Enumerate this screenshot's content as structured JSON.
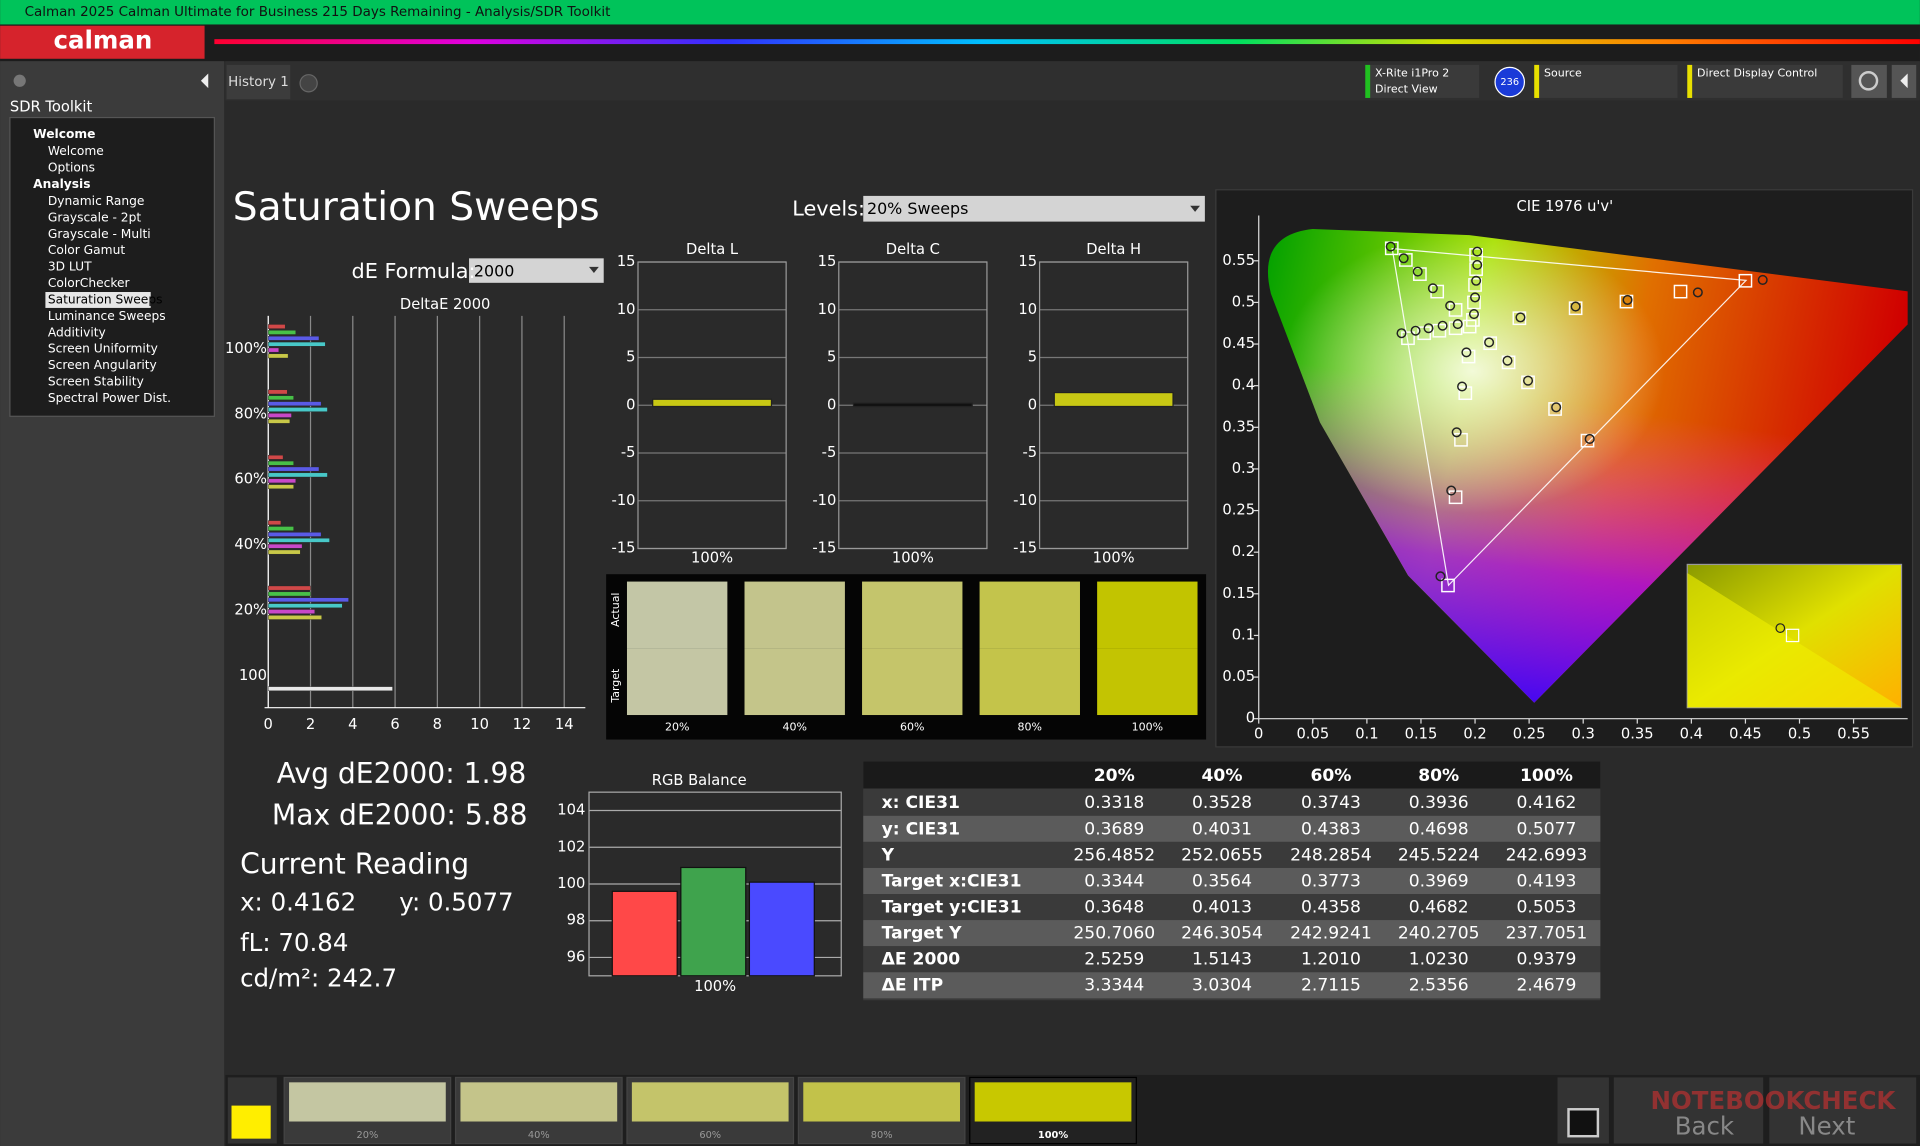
{
  "window": {
    "title": "Calman 2025 Calman Ultimate for Business 215 Days Remaining  - Analysis/SDR Toolkit"
  },
  "app": {
    "logo": "calman"
  },
  "tabs": {
    "items": [
      "History 1"
    ]
  },
  "toolbar": {
    "meter": "X-Rite i1Pro 2",
    "meter_mode": "Direct View",
    "badge": "236",
    "source": "Source",
    "display": "Direct Display Control"
  },
  "sidebar": {
    "title": "SDR Toolkit",
    "groups": [
      {
        "label": "Welcome",
        "items": [
          "Welcome",
          "Options"
        ]
      },
      {
        "label": "Analysis",
        "items": [
          "Dynamic Range",
          "Grayscale - 2pt",
          "Grayscale - Multi",
          "Color Gamut",
          "3D LUT",
          "ColorChecker",
          "Saturation Sweeps",
          "Luminance Sweeps",
          "Additivity",
          "Screen Uniformity",
          "Screen Angularity",
          "Screen Stability",
          "Spectral Power Dist."
        ]
      }
    ],
    "selected": {
      "group": 1,
      "item": 6
    }
  },
  "header": {
    "title": "Saturation Sweeps",
    "levels_label": "Levels:",
    "levels": "20% Sweeps",
    "formula_label": "dE Formula:",
    "formula": "2000"
  },
  "deltae_chart": {
    "type": "bar",
    "orientation": "horizontal",
    "title": "DeltaE 2000",
    "categories": [
      "100%",
      "80%",
      "60%",
      "40%",
      "20%",
      "100"
    ],
    "series": [
      {
        "color": "#d04848",
        "values": [
          0.8,
          0.9,
          0.7,
          0.6,
          2.0,
          null
        ]
      },
      {
        "color": "#48c048",
        "values": [
          1.3,
          1.2,
          1.2,
          1.2,
          2.0,
          null
        ]
      },
      {
        "color": "#5a5ae6",
        "values": [
          2.4,
          2.5,
          2.4,
          2.5,
          3.8,
          null
        ]
      },
      {
        "color": "#48c8c8",
        "values": [
          2.7,
          2.8,
          2.8,
          2.9,
          3.5,
          null
        ]
      },
      {
        "color": "#c848c8",
        "values": [
          0.5,
          1.1,
          1.3,
          1.6,
          2.2,
          null
        ]
      },
      {
        "color": "#c8c848",
        "values": [
          0.9379,
          1.023,
          1.201,
          1.5143,
          2.5259,
          null
        ]
      },
      {
        "color": "#e8e8e8",
        "values": [
          null,
          null,
          null,
          null,
          null,
          5.88
        ]
      }
    ],
    "xlim": [
      0,
      15
    ],
    "xticks": [
      0,
      2,
      4,
      6,
      8,
      10,
      12,
      14
    ]
  },
  "delta_charts": [
    {
      "type": "bar",
      "title": "Delta L",
      "categories": [
        "100%"
      ],
      "values": [
        0.5
      ],
      "color": "#c8c814",
      "ylim": [
        -15,
        15
      ],
      "yticks": [
        15,
        10,
        5,
        0,
        -5,
        -10,
        -15
      ]
    },
    {
      "type": "bar",
      "title": "Delta C",
      "categories": [
        "100%"
      ],
      "values": [
        0.1
      ],
      "color": "#c8c814",
      "ylim": [
        -15,
        15
      ],
      "yticks": [
        15,
        10,
        5,
        0,
        -5,
        -10,
        -15
      ]
    },
    {
      "type": "bar",
      "title": "Delta H",
      "categories": [
        "100%"
      ],
      "values": [
        1.2
      ],
      "color": "#c8c814",
      "ylim": [
        -15,
        15
      ],
      "yticks": [
        15,
        10,
        5,
        0,
        -5,
        -10,
        -15
      ]
    }
  ],
  "swatches": {
    "row_labels": [
      "Actual",
      "Target"
    ],
    "labels": [
      "20%",
      "40%",
      "60%",
      "80%",
      "100%"
    ],
    "actual_colors": [
      "#c3c6a6",
      "#c3c48c",
      "#c4c56c",
      "#c3c44c",
      "#c2c400"
    ],
    "target_colors": [
      "#c4c6a4",
      "#c4c58a",
      "#c5c56a",
      "#c4c44a",
      "#c3c402"
    ]
  },
  "cie_chart": {
    "type": "scatter",
    "title": "CIE 1976 u'v'",
    "xlim": [
      0,
      0.6
    ],
    "ylim": [
      0,
      0.6
    ],
    "xticks": [
      0,
      0.05,
      0.1,
      0.15,
      0.2,
      0.25,
      0.3,
      0.35,
      0.4,
      0.45,
      0.5,
      0.55
    ],
    "yticks": [
      0,
      0.05,
      0.1,
      0.15,
      0.2,
      0.25,
      0.3,
      0.35,
      0.4,
      0.45,
      0.5,
      0.55
    ],
    "series": [
      {
        "marker": "square",
        "color": "#ffffff",
        "x": [
          0.45,
          0.39,
          0.34,
          0.293,
          0.241,
          0.304,
          0.274,
          0.249,
          0.231,
          0.214,
          0.175,
          0.182,
          0.187,
          0.191,
          0.194,
          0.138,
          0.153,
          0.167,
          0.182,
          0.195,
          0.123,
          0.136,
          0.149,
          0.165,
          0.182,
          0.201,
          0.201,
          0.2,
          0.199,
          0.198
        ],
        "y": [
          0.526,
          0.513,
          0.501,
          0.493,
          0.481,
          0.334,
          0.372,
          0.404,
          0.428,
          0.451,
          0.16,
          0.266,
          0.335,
          0.391,
          0.435,
          0.457,
          0.463,
          0.466,
          0.469,
          0.471,
          0.565,
          0.551,
          0.534,
          0.513,
          0.491,
          0.557,
          0.54,
          0.521,
          0.5,
          0.479
        ]
      },
      {
        "marker": "circle",
        "color": "#222222",
        "x": [
          0.466,
          0.406,
          0.341,
          0.293,
          0.242,
          0.306,
          0.275,
          0.249,
          0.23,
          0.213,
          0.168,
          0.178,
          0.183,
          0.188,
          0.192,
          0.132,
          0.145,
          0.157,
          0.17,
          0.184,
          0.122,
          0.134,
          0.147,
          0.161,
          0.177,
          0.202,
          0.202,
          0.201,
          0.2,
          0.199
        ],
        "y": [
          0.527,
          0.512,
          0.503,
          0.495,
          0.482,
          0.336,
          0.374,
          0.406,
          0.43,
          0.452,
          0.171,
          0.274,
          0.344,
          0.399,
          0.44,
          0.463,
          0.466,
          0.469,
          0.472,
          0.474,
          0.567,
          0.553,
          0.537,
          0.517,
          0.496,
          0.561,
          0.545,
          0.526,
          0.506,
          0.486
        ]
      }
    ]
  },
  "rgb_balance": {
    "type": "bar",
    "title": "RGB Balance",
    "categories": [
      "100%"
    ],
    "series": [
      {
        "color": "#ff4848",
        "values": [
          99.6
        ]
      },
      {
        "color": "#3fa34d",
        "values": [
          100.9
        ]
      },
      {
        "color": "#4a4aff",
        "values": [
          100.1
        ]
      }
    ],
    "ylim": [
      95,
      105
    ],
    "yticks": [
      96,
      98,
      100,
      102,
      104
    ],
    "grid": true
  },
  "summary": {
    "avg": "Avg dE2000: 1.98",
    "max": "Max dE2000: 5.88",
    "reading_title": "Current Reading",
    "x": "x: 0.4162",
    "y": "y: 0.5077",
    "fl": "fL: 70.84",
    "cdm2": "cd/m²: 242.7"
  },
  "table": {
    "header": [
      "20%",
      "40%",
      "60%",
      "80%",
      "100%"
    ],
    "rows": [
      {
        "label": "x: CIE31",
        "values": [
          "0.3318",
          "0.3528",
          "0.3743",
          "0.3936",
          "0.4162"
        ]
      },
      {
        "label": "y: CIE31",
        "values": [
          "0.3689",
          "0.4031",
          "0.4383",
          "0.4698",
          "0.5077"
        ]
      },
      {
        "label": "Y",
        "values": [
          "256.4852",
          "252.0655",
          "248.2854",
          "245.5224",
          "242.6993"
        ]
      },
      {
        "label": "Target x:CIE31",
        "values": [
          "0.3344",
          "0.3564",
          "0.3773",
          "0.3969",
          "0.4193"
        ]
      },
      {
        "label": "Target y:CIE31",
        "values": [
          "0.3648",
          "0.4013",
          "0.4358",
          "0.4682",
          "0.5053"
        ]
      },
      {
        "label": "Target Y",
        "values": [
          "250.7060",
          "246.3054",
          "242.9241",
          "240.2705",
          "237.7051"
        ]
      },
      {
        "label": "ΔE 2000",
        "values": [
          "2.5259",
          "1.5143",
          "1.2010",
          "1.0230",
          "0.9379"
        ]
      },
      {
        "label": "ΔE ITP",
        "values": [
          "3.3344",
          "3.0304",
          "2.7115",
          "2.5356",
          "2.4679"
        ]
      }
    ]
  },
  "bottom": {
    "labels": [
      "20%",
      "40%",
      "60%",
      "80%",
      "100%"
    ],
    "colors": [
      "#c4c6a2",
      "#c4c48a",
      "#c4c46a",
      "#c2c24a",
      "#c8c800"
    ],
    "current_color": "#ffee00",
    "selected": 4,
    "back": "Back",
    "next": "Next",
    "watermark": "NOTEBOOKCHECK"
  }
}
